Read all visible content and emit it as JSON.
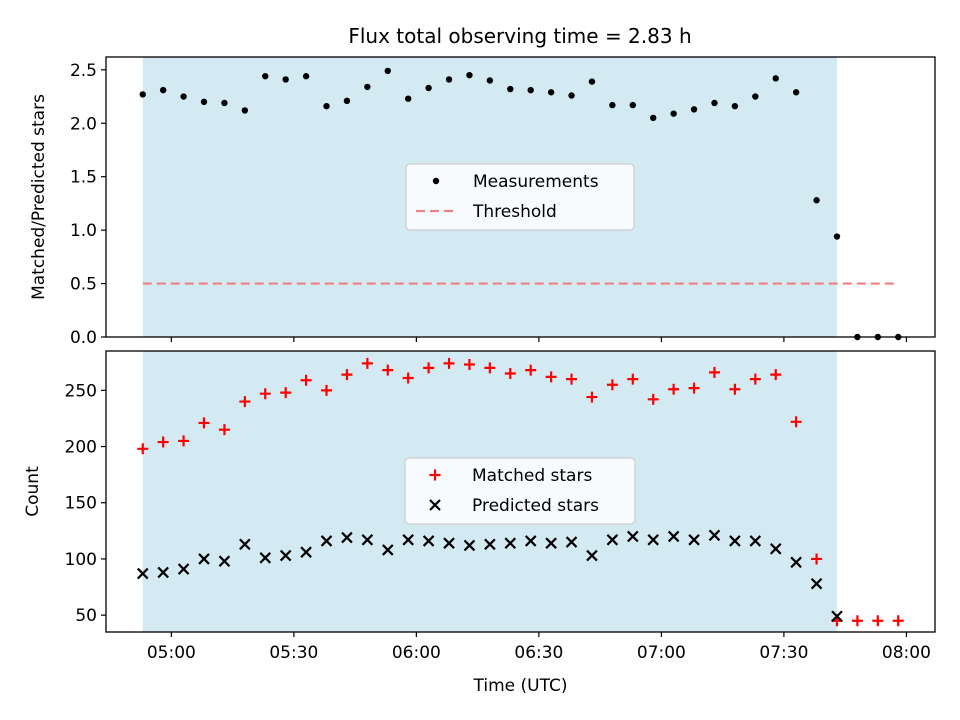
{
  "title": "Flux total observing time = 2.83 h",
  "colors": {
    "shade": "#add8e6",
    "measurements": "#000000",
    "threshold": "#f08080",
    "matched": "#ff0000",
    "predicted": "#000000"
  },
  "chart_data": [
    {
      "type": "scatter",
      "ylabel": "Matched/Predicted stars",
      "ylim": [
        0,
        2.62
      ],
      "yticks": [
        "0.0",
        "0.5",
        "1.0",
        "1.5",
        "2.0",
        "2.5"
      ],
      "ytick_values": [
        0,
        0.5,
        1.0,
        1.5,
        2.0,
        2.5
      ],
      "legend": {
        "placement": "center",
        "entries": [
          "Measurements",
          "Threshold"
        ]
      },
      "shaded_region": {
        "from": "04:53",
        "to": "07:43"
      },
      "threshold": {
        "value": 0.5,
        "from": "04:53",
        "to": "07:58"
      },
      "series": [
        {
          "name": "Measurements",
          "marker": "dot",
          "x": [
            "04:53",
            "04:58",
            "05:03",
            "05:08",
            "05:13",
            "05:18",
            "05:23",
            "05:28",
            "05:33",
            "05:38",
            "05:43",
            "05:48",
            "05:53",
            "05:58",
            "06:03",
            "06:08",
            "06:13",
            "06:18",
            "06:23",
            "06:28",
            "06:33",
            "06:38",
            "06:43",
            "06:48",
            "06:53",
            "06:58",
            "07:03",
            "07:08",
            "07:13",
            "07:18",
            "07:23",
            "07:28",
            "07:33",
            "07:38",
            "07:43",
            "07:48",
            "07:53",
            "07:58"
          ],
          "y": [
            2.27,
            2.31,
            2.25,
            2.2,
            2.19,
            2.12,
            2.44,
            2.41,
            2.44,
            2.16,
            2.21,
            2.34,
            2.49,
            2.23,
            2.33,
            2.41,
            2.45,
            2.4,
            2.32,
            2.31,
            2.29,
            2.26,
            2.39,
            2.17,
            2.17,
            2.05,
            2.09,
            2.13,
            2.19,
            2.16,
            2.25,
            2.42,
            2.29,
            1.28,
            0.94,
            0.0,
            0.0,
            0.0
          ]
        }
      ]
    },
    {
      "type": "scatter",
      "xlabel": "Time (UTC)",
      "ylabel": "Count",
      "xlim": [
        "04:44",
        "08:07"
      ],
      "xticks": [
        "05:00",
        "05:30",
        "06:00",
        "06:30",
        "07:00",
        "07:30",
        "08:00"
      ],
      "ylim": [
        35,
        285
      ],
      "yticks": [
        "50",
        "100",
        "150",
        "200",
        "250"
      ],
      "ytick_values": [
        50,
        100,
        150,
        200,
        250
      ],
      "legend": {
        "placement": "center",
        "entries": [
          "Matched stars",
          "Predicted stars"
        ]
      },
      "shaded_region": {
        "from": "04:53",
        "to": "07:43"
      },
      "series": [
        {
          "name": "Matched stars",
          "marker": "plus",
          "x": [
            "04:53",
            "04:58",
            "05:03",
            "05:08",
            "05:13",
            "05:18",
            "05:23",
            "05:28",
            "05:33",
            "05:38",
            "05:43",
            "05:48",
            "05:53",
            "05:58",
            "06:03",
            "06:08",
            "06:13",
            "06:18",
            "06:23",
            "06:28",
            "06:33",
            "06:38",
            "06:43",
            "06:48",
            "06:53",
            "06:58",
            "07:03",
            "07:08",
            "07:13",
            "07:18",
            "07:23",
            "07:28",
            "07:33",
            "07:38",
            "07:43",
            "07:48",
            "07:53",
            "07:58"
          ],
          "y": [
            198,
            204,
            205,
            221,
            215,
            240,
            247,
            248,
            259,
            250,
            264,
            274,
            268,
            261,
            270,
            274,
            273,
            270,
            265,
            268,
            262,
            260,
            244,
            255,
            260,
            242,
            251,
            252,
            266,
            251,
            260,
            264,
            222,
            100,
            45,
            45,
            45,
            45
          ]
        },
        {
          "name": "Predicted stars",
          "marker": "x",
          "x": [
            "04:53",
            "04:58",
            "05:03",
            "05:08",
            "05:13",
            "05:18",
            "05:23",
            "05:28",
            "05:33",
            "05:38",
            "05:43",
            "05:48",
            "05:53",
            "05:58",
            "06:03",
            "06:08",
            "06:13",
            "06:18",
            "06:23",
            "06:28",
            "06:33",
            "06:38",
            "06:43",
            "06:48",
            "06:53",
            "06:58",
            "07:03",
            "07:08",
            "07:13",
            "07:18",
            "07:23",
            "07:28",
            "07:33",
            "07:38",
            "07:43"
          ],
          "y": [
            87,
            88,
            91,
            100,
            98,
            113,
            101,
            103,
            106,
            116,
            119,
            117,
            108,
            117,
            116,
            114,
            112,
            113,
            114,
            116,
            114,
            115,
            103,
            117,
            120,
            117,
            120,
            117,
            121,
            116,
            116,
            109,
            97,
            78,
            49
          ]
        }
      ]
    }
  ]
}
